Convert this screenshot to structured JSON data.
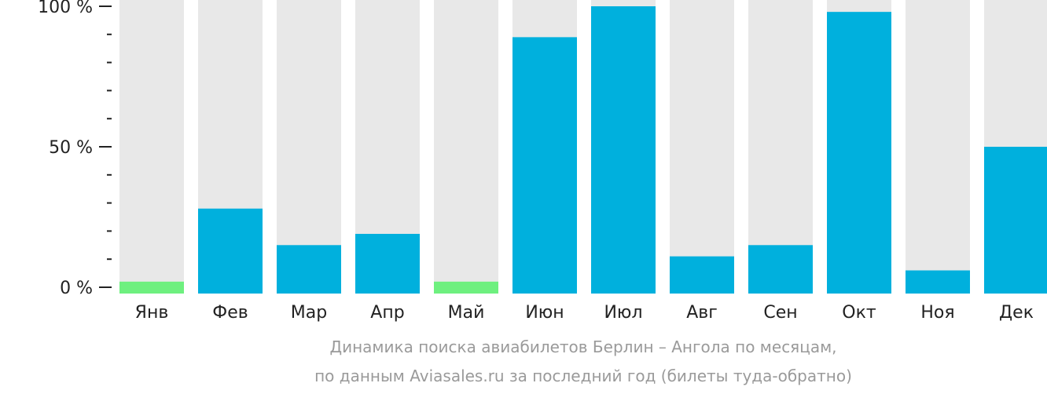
{
  "colors": {
    "track": "#e8e8e8",
    "bar": "#00b0dd",
    "bar_low": "#6ef07f",
    "axis": "#222222"
  },
  "chart_data": {
    "type": "bar",
    "categories": [
      "Янв",
      "Фев",
      "Мар",
      "Апр",
      "Май",
      "Июн",
      "Июл",
      "Авг",
      "Сен",
      "Окт",
      "Ноя",
      "Дек"
    ],
    "values": [
      2,
      28,
      15,
      19,
      2,
      89,
      100,
      11,
      15,
      98,
      6,
      50
    ],
    "highlight_low": [
      true,
      false,
      false,
      false,
      true,
      false,
      false,
      false,
      false,
      false,
      false,
      false
    ],
    "ylim": [
      0,
      100
    ],
    "yticks": [
      {
        "value": 0,
        "label": "0 %"
      },
      {
        "value": 50,
        "label": "50 %"
      },
      {
        "value": 100,
        "label": "100 %"
      }
    ],
    "minor_tick_step": 10,
    "title": "Динамика поиска авиабилетов Берлин – Ангола по месяцам,",
    "subtitle": "по данным Aviasales.ru за последний год (билеты туда-обратно)",
    "xlabel": "",
    "ylabel": ""
  }
}
